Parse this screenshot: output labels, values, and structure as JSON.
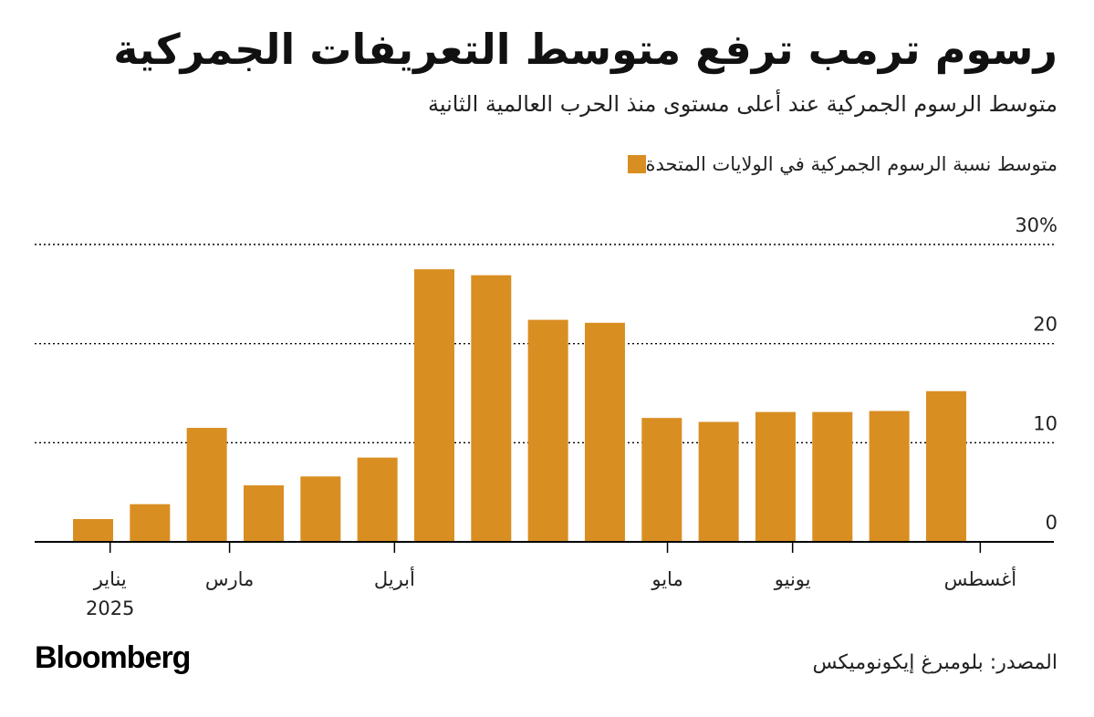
{
  "title": "رسوم ترمب ترفع متوسط التعريفات الجمركية",
  "subtitle": "متوسط الرسوم الجمركية عند أعلى مستوى منذ الحرب العالمية الثانية",
  "source": "المصدر: بلومبرغ إيكونوميكس",
  "brand": "Bloomberg",
  "colors": {
    "bar": "#D98E22",
    "axis": "#000000",
    "grid": "#000000"
  },
  "chart_data": {
    "type": "bar",
    "title": "رسوم ترمب ترفع متوسط التعريفات الجمركية",
    "subtitle": "متوسط الرسوم الجمركية عند أعلى مستوى منذ الحرب العالمية الثانية",
    "series": [
      {
        "name": "متوسط نسبة الرسوم الجمركية في الولايات المتحدة",
        "values": [
          2.3,
          3.8,
          11.5,
          5.7,
          6.6,
          8.5,
          27.5,
          26.9,
          22.4,
          22.1,
          12.5,
          12.1,
          13.1,
          13.1,
          13.2,
          15.2
        ]
      }
    ],
    "y_ticks": [
      {
        "value": 0,
        "label": "0"
      },
      {
        "value": 10,
        "label": "10"
      },
      {
        "value": 20,
        "label": "20"
      },
      {
        "value": 30,
        "label": "30%"
      }
    ],
    "x_ticks": [
      {
        "position": 0.3,
        "label": "يناير",
        "sublabel": "2025"
      },
      {
        "position": 2.4,
        "label": "مارس",
        "sublabel": ""
      },
      {
        "position": 5.3,
        "label": "أبريل",
        "sublabel": ""
      },
      {
        "position": 10.1,
        "label": "مايو",
        "sublabel": ""
      },
      {
        "position": 12.3,
        "label": "يونيو",
        "sublabel": ""
      },
      {
        "position": 15.6,
        "label": "أغسطس",
        "sublabel": ""
      }
    ],
    "ylim": [
      0,
      30
    ],
    "grid": true,
    "legend": "top-right"
  }
}
